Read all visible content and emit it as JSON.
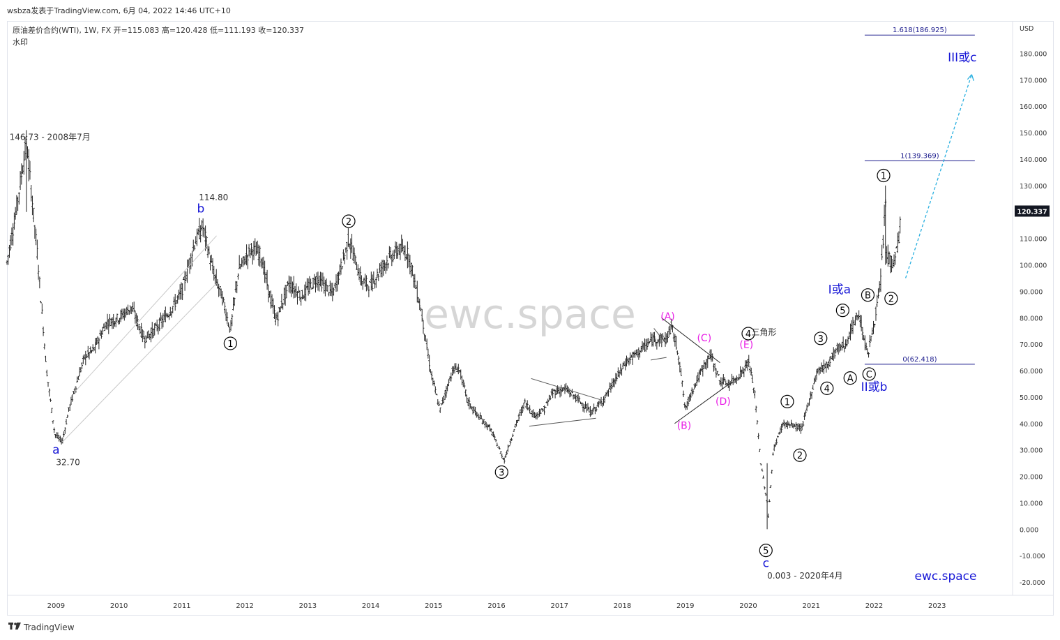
{
  "header": {
    "publisher_line": "wsbza发表于TradingView.com, 6月 04, 2022 14:46 UTC+10",
    "symbol_line": "原油差价合约(WTI), 1W, FX  开=115.083  高=120.428  低=111.193  收=120.337",
    "sub_line": "水印"
  },
  "footer": {
    "brand": "TradingView",
    "brand_icon": "tradingview-logo-icon"
  },
  "watermark": {
    "center": "ewc.space",
    "corner": "ewc.space"
  },
  "colors": {
    "black_label": "#000000",
    "blue_label": "#1515d6",
    "magenta_label": "#e91ee6",
    "fib_line": "#1a1a8c",
    "arrow": "#2ab0e0",
    "candle": "#222222",
    "trendline": "#c8c8c8"
  },
  "chart_data": {
    "type": "candlestick",
    "title": "原油差价合约(WTI), 1W, FX",
    "y_axis": {
      "unit": "USD",
      "range": [
        -25,
        192
      ],
      "ticks": [
        "-20.000",
        "-10.000",
        "0.000",
        "10.000",
        "20.000",
        "30.000",
        "40.000",
        "50.000",
        "60.000",
        "70.000",
        "80.000",
        "90.000",
        "100.000",
        "110.000",
        "120.000",
        "130.000",
        "140.000",
        "150.000",
        "160.000",
        "170.000",
        "180.000"
      ],
      "tick_values": [
        -20,
        -10,
        0,
        10,
        20,
        30,
        40,
        50,
        60,
        70,
        80,
        90,
        100,
        110,
        120,
        130,
        140,
        150,
        160,
        170,
        180
      ],
      "last_price": "120.337",
      "last_value": 120.337
    },
    "x_axis": {
      "range": [
        2008.22,
        2024.2
      ],
      "ticks": [
        "2009",
        "2010",
        "2011",
        "2012",
        "2013",
        "2014",
        "2015",
        "2016",
        "2017",
        "2018",
        "2019",
        "2020",
        "2021",
        "2022",
        "2023"
      ],
      "tick_values": [
        2009,
        2010,
        2011,
        2012,
        2013,
        2014,
        2015,
        2016,
        2017,
        2018,
        2019,
        2020,
        2021,
        2022,
        2023
      ]
    },
    "ohlc_last": {
      "open": 115.083,
      "high": 120.428,
      "low": 111.193,
      "close": 120.337
    },
    "price_path": [
      [
        2008.22,
        101
      ],
      [
        2008.35,
        118
      ],
      [
        2008.53,
        146.73
      ],
      [
        2008.7,
        105
      ],
      [
        2008.85,
        60
      ],
      [
        2008.98,
        36
      ],
      [
        2009.1,
        33
      ],
      [
        2009.2,
        45
      ],
      [
        2009.45,
        65
      ],
      [
        2009.6,
        68
      ],
      [
        2009.8,
        78
      ],
      [
        2010.0,
        80
      ],
      [
        2010.2,
        84
      ],
      [
        2010.4,
        72
      ],
      [
        2010.55,
        75
      ],
      [
        2010.8,
        82
      ],
      [
        2011.0,
        90
      ],
      [
        2011.2,
        108
      ],
      [
        2011.33,
        114.8
      ],
      [
        2011.5,
        97
      ],
      [
        2011.65,
        87
      ],
      [
        2011.77,
        75
      ],
      [
        2011.9,
        98
      ],
      [
        2012.1,
        106
      ],
      [
        2012.25,
        104
      ],
      [
        2012.4,
        88
      ],
      [
        2012.5,
        79
      ],
      [
        2012.7,
        93
      ],
      [
        2012.9,
        88
      ],
      [
        2013.15,
        95
      ],
      [
        2013.4,
        89
      ],
      [
        2013.6,
        105
      ],
      [
        2013.65,
        110
      ],
      [
        2013.85,
        94
      ],
      [
        2014.0,
        92
      ],
      [
        2014.2,
        100
      ],
      [
        2014.45,
        106
      ],
      [
        2014.6,
        104
      ],
      [
        2014.8,
        83
      ],
      [
        2014.95,
        60
      ],
      [
        2015.1,
        45
      ],
      [
        2015.3,
        60
      ],
      [
        2015.4,
        61
      ],
      [
        2015.55,
        48
      ],
      [
        2015.7,
        43
      ],
      [
        2015.9,
        38
      ],
      [
        2016.05,
        30
      ],
      [
        2016.12,
        26
      ],
      [
        2016.3,
        39
      ],
      [
        2016.45,
        48
      ],
      [
        2016.6,
        43
      ],
      [
        2016.75,
        45
      ],
      [
        2016.9,
        52
      ],
      [
        2017.1,
        53
      ],
      [
        2017.3,
        49
      ],
      [
        2017.5,
        44
      ],
      [
        2017.7,
        49
      ],
      [
        2017.9,
        57
      ],
      [
        2018.05,
        63
      ],
      [
        2018.3,
        68
      ],
      [
        2018.5,
        72
      ],
      [
        2018.7,
        72
      ],
      [
        2018.78,
        77
      ],
      [
        2018.9,
        65
      ],
      [
        2019.0,
        45
      ],
      [
        2019.1,
        52
      ],
      [
        2019.3,
        62
      ],
      [
        2019.4,
        66
      ],
      [
        2019.55,
        56
      ],
      [
        2019.7,
        55
      ],
      [
        2019.85,
        58
      ],
      [
        2019.95,
        61
      ],
      [
        2020.0,
        64
      ],
      [
        2020.1,
        52
      ],
      [
        2020.2,
        25
      ],
      [
        2020.3,
        10
      ],
      [
        2020.3,
        0.003
      ],
      [
        2020.4,
        30
      ],
      [
        2020.55,
        40
      ],
      [
        2020.75,
        39
      ],
      [
        2020.85,
        38
      ],
      [
        2020.95,
        47
      ],
      [
        2021.1,
        60
      ],
      [
        2021.25,
        62
      ],
      [
        2021.4,
        68
      ],
      [
        2021.55,
        70
      ],
      [
        2021.75,
        82
      ],
      [
        2021.9,
        66
      ],
      [
        2022.0,
        78
      ],
      [
        2022.1,
        92
      ],
      [
        2022.18,
        125
      ],
      [
        2022.2,
        104
      ],
      [
        2022.3,
        100
      ],
      [
        2022.4,
        110
      ],
      [
        2022.42,
        120.337
      ]
    ],
    "wave_labels": [
      {
        "text": "146.73 - 2008年7月",
        "x": 2008.26,
        "y": 147.2,
        "style": "plain"
      },
      {
        "text": "114.80",
        "x": 2011.27,
        "y": 124.4,
        "style": "plain"
      },
      {
        "text": "b",
        "x": 2011.3,
        "y": 119.8,
        "style": "blue"
      },
      {
        "text": "a",
        "x": 2009.0,
        "y": 28.6,
        "style": "blue"
      },
      {
        "text": "32.70",
        "x": 2009.0,
        "y": 24.3,
        "style": "plain"
      },
      {
        "text": "1",
        "x": 2011.77,
        "y": 70.3,
        "style": "circle"
      },
      {
        "text": "2",
        "x": 2013.65,
        "y": 116.5,
        "style": "circle"
      },
      {
        "text": "3",
        "x": 2016.08,
        "y": 21.6,
        "style": "circle"
      },
      {
        "text": "(A)",
        "x": 2018.72,
        "y": 79.3,
        "style": "magenta"
      },
      {
        "text": "(B)",
        "x": 2018.98,
        "y": 38.0,
        "style": "magenta"
      },
      {
        "text": "(C)",
        "x": 2019.3,
        "y": 71.1,
        "style": "magenta"
      },
      {
        "text": "(D)",
        "x": 2019.6,
        "y": 47.1,
        "style": "magenta"
      },
      {
        "text": "(E)",
        "x": 2019.97,
        "y": 68.6,
        "style": "magenta"
      },
      {
        "text": "4",
        "x": 2020.0,
        "y": 74.0,
        "style": "circle"
      },
      {
        "text": "三角形",
        "x": 2020.05,
        "y": 73.5,
        "style": "plain"
      },
      {
        "text": "5",
        "x": 2020.28,
        "y": -8.0,
        "style": "circle"
      },
      {
        "text": "c",
        "x": 2020.28,
        "y": -14.3,
        "style": "blue"
      },
      {
        "text": "0.003 - 2020年4月",
        "x": 2020.3,
        "y": -18.7,
        "style": "plain"
      },
      {
        "text": "1",
        "x": 2020.62,
        "y": 48.3,
        "style": "circle"
      },
      {
        "text": "2",
        "x": 2020.82,
        "y": 28.0,
        "style": "circle"
      },
      {
        "text": "3",
        "x": 2021.15,
        "y": 72.2,
        "style": "circle"
      },
      {
        "text": "4",
        "x": 2021.25,
        "y": 53.3,
        "style": "circle"
      },
      {
        "text": "5",
        "x": 2021.5,
        "y": 82.8,
        "style": "circle"
      },
      {
        "text": "I或a",
        "x": 2021.45,
        "y": 89.2,
        "style": "blue"
      },
      {
        "text": "A",
        "x": 2021.62,
        "y": 57.2,
        "style": "circle"
      },
      {
        "text": "B",
        "x": 2021.9,
        "y": 88.6,
        "style": "circle"
      },
      {
        "text": "C",
        "x": 2021.92,
        "y": 58.7,
        "style": "circle"
      },
      {
        "text": "II或b",
        "x": 2022.0,
        "y": 52.4,
        "style": "blue"
      },
      {
        "text": "1",
        "x": 2022.15,
        "y": 133.8,
        "style": "circle"
      },
      {
        "text": "2",
        "x": 2022.27,
        "y": 87.3,
        "style": "circle"
      },
      {
        "text": "III或c",
        "x": 2023.4,
        "y": 177.0,
        "style": "blue"
      }
    ],
    "fib_levels": [
      {
        "label": "1.618(186.925)",
        "value": 186.925
      },
      {
        "label": "1(139.369)",
        "value": 139.369
      },
      {
        "label": "0(62.418)",
        "value": 62.418
      }
    ],
    "projection_arrow": {
      "from": [
        2022.5,
        95
      ],
      "to": [
        2023.55,
        172
      ]
    }
  }
}
